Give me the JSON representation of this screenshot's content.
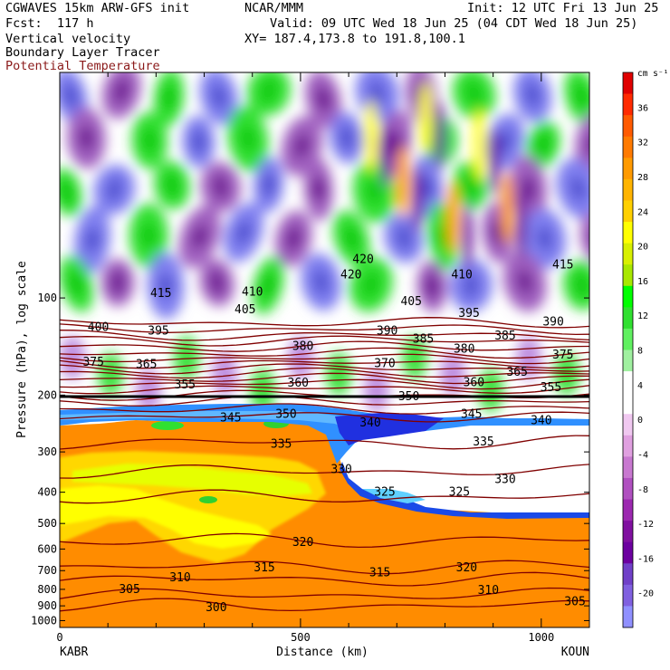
{
  "header": {
    "model": "CGWAVES 15km ARW-GFS init",
    "org": "NCAR/MMM",
    "init": "Init: 12 UTC Fri 13 Jun 25",
    "fcst": "Fcst:  117 h",
    "valid": "Valid: 09 UTC Wed 18 Jun 25 (04 CDT Wed 18 Jun 25)",
    "fields": [
      "Vertical velocity",
      "Boundary Layer Tracer",
      "Potential Temperature"
    ],
    "xy": "XY= 187.4,173.8 to 191.8,100.1"
  },
  "chart_data": {
    "type": "heatmap",
    "title": "Vertical velocity",
    "xlabel": "Distance (km)",
    "ylabel": "Pressure (hPa), log scale",
    "xlim": [
      0,
      1100
    ],
    "ylim": [
      1050,
      20
    ],
    "y_scale": "log",
    "x_ticks": [
      0,
      500,
      1000
    ],
    "y_ticks": [
      100,
      200,
      300,
      400,
      500,
      600,
      700,
      800,
      900,
      1000
    ],
    "endpoints": {
      "left": "KABR",
      "right": "KOUN"
    },
    "colorbar": {
      "unit": "cm s⁻¹",
      "labels": [
        36,
        32,
        28,
        24,
        20,
        16,
        12,
        8,
        4,
        0,
        -4,
        -8,
        -12,
        -16,
        -20
      ],
      "colors": [
        "#e00000",
        "#ff2a00",
        "#ff5a00",
        "#ff7a00",
        "#ff9a00",
        "#ffb400",
        "#ffd000",
        "#ffff00",
        "#d8f000",
        "#a8e800",
        "#00ff00",
        "#30e030",
        "#60f060",
        "#a0f0a0",
        "#ffffff",
        "#ffffff",
        "#f0c8f0",
        "#e0a0e0",
        "#c878d0",
        "#b050c0",
        "#9c28b0",
        "#8010a0",
        "#6c00a0",
        "#7040c8",
        "#8060e0",
        "#9090ff"
      ]
    },
    "theta_contour_labels": [
      {
        "x": 210,
        "p": 98,
        "label": "415"
      },
      {
        "x": 400,
        "p": 97,
        "label": "410"
      },
      {
        "x": 630,
        "p": 77,
        "label": "420"
      },
      {
        "x": 835,
        "p": 86,
        "label": "410"
      },
      {
        "x": 1045,
        "p": 80,
        "label": "415"
      },
      {
        "x": 80,
        "p": 125,
        "label": "400"
      },
      {
        "x": 205,
        "p": 128,
        "label": "395"
      },
      {
        "x": 385,
        "p": 110,
        "label": "405"
      },
      {
        "x": 605,
        "p": 86,
        "label": "420"
      },
      {
        "x": 730,
        "p": 104,
        "label": "405"
      },
      {
        "x": 850,
        "p": 113,
        "label": "395"
      },
      {
        "x": 1025,
        "p": 120,
        "label": "390"
      },
      {
        "x": 70,
        "p": 160,
        "label": "375"
      },
      {
        "x": 180,
        "p": 163,
        "label": "365"
      },
      {
        "x": 505,
        "p": 143,
        "label": "380"
      },
      {
        "x": 680,
        "p": 128,
        "label": "390"
      },
      {
        "x": 755,
        "p": 136,
        "label": "385"
      },
      {
        "x": 925,
        "p": 133,
        "label": "385"
      },
      {
        "x": 840,
        "p": 146,
        "label": "380"
      },
      {
        "x": 1045,
        "p": 152,
        "label": "375"
      },
      {
        "x": 675,
        "p": 162,
        "label": "370"
      },
      {
        "x": 950,
        "p": 172,
        "label": "365"
      },
      {
        "x": 860,
        "p": 185,
        "label": "360"
      },
      {
        "x": 1020,
        "p": 192,
        "label": "355"
      },
      {
        "x": 260,
        "p": 188,
        "label": "355"
      },
      {
        "x": 495,
        "p": 186,
        "label": "360"
      },
      {
        "x": 725,
        "p": 205,
        "label": "350"
      },
      {
        "x": 855,
        "p": 232,
        "label": "345"
      },
      {
        "x": 1000,
        "p": 243,
        "label": "340"
      },
      {
        "x": 355,
        "p": 238,
        "label": "345"
      },
      {
        "x": 470,
        "p": 232,
        "label": "350"
      },
      {
        "x": 645,
        "p": 247,
        "label": "340"
      },
      {
        "x": 460,
        "p": 287,
        "label": "335"
      },
      {
        "x": 880,
        "p": 283,
        "label": "335"
      },
      {
        "x": 585,
        "p": 345,
        "label": "330"
      },
      {
        "x": 925,
        "p": 370,
        "label": "330"
      },
      {
        "x": 675,
        "p": 405,
        "label": "325"
      },
      {
        "x": 830,
        "p": 405,
        "label": "325"
      },
      {
        "x": 505,
        "p": 580,
        "label": "320"
      },
      {
        "x": 845,
        "p": 695,
        "label": "320"
      },
      {
        "x": 425,
        "p": 695,
        "label": "315"
      },
      {
        "x": 665,
        "p": 720,
        "label": "315"
      },
      {
        "x": 250,
        "p": 745,
        "label": "310"
      },
      {
        "x": 890,
        "p": 815,
        "label": "310"
      },
      {
        "x": 145,
        "p": 810,
        "label": "305"
      },
      {
        "x": 1070,
        "p": 885,
        "label": "305"
      },
      {
        "x": 325,
        "p": 922,
        "label": "300"
      }
    ],
    "legend": "none",
    "grid": false
  }
}
